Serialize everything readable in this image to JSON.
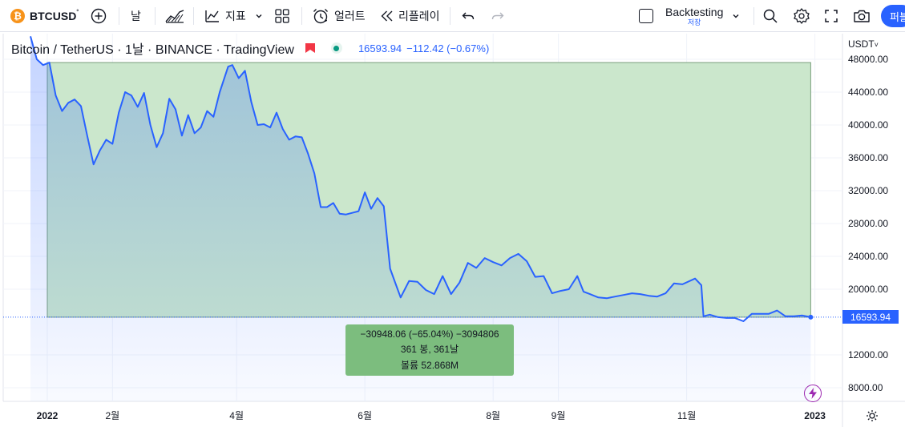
{
  "toolbar": {
    "symbol": "BTCUSD",
    "symbol_suffix": "°",
    "symbol_logo_glyph": "₿",
    "interval": "날",
    "indicators_label": "지표",
    "alerts_label": "얼러트",
    "replay_label": "리플레이",
    "backtesting_label": "Backtesting",
    "backtesting_sub": "저장",
    "publish_label": "퍼블"
  },
  "legend": {
    "title": "Bitcoin / TetherUS · 1날 · BINANCE · TradingView",
    "price": "16593.94",
    "change": "−112.42 (−0.67%)"
  },
  "price_axis": {
    "currency": "USDT",
    "labels": [
      "48000.00",
      "44000.00",
      "40000.00",
      "36000.00",
      "32000.00",
      "28000.00",
      "24000.00",
      "20000.00",
      "16593.94",
      "12000.00",
      "8000.00"
    ],
    "current_price": "16593.94"
  },
  "time_axis": {
    "labels": [
      "2022",
      "2월",
      "4월",
      "6월",
      "8월",
      "9월",
      "11월",
      "2023"
    ]
  },
  "measure_tooltip": {
    "line1": "−30948.06 (−65.04%) −3094806",
    "line2": "361 봉, 361날",
    "line3": "볼륨 52.868M"
  },
  "colors": {
    "line": "#2962ff",
    "measure_fill": "#c8e6c9",
    "tooltip_bg": "#7cbd7e",
    "accent": "#2962ff",
    "flag": "#f23645",
    "live": "#089981"
  },
  "chart_data": {
    "type": "line",
    "title": "Bitcoin / TetherUS · 1날 · BINANCE · TradingView",
    "ylim": [
      6500,
      51000
    ],
    "series": [
      {
        "name": "",
        "x": [
          "2021-12-24",
          "2021-12-27",
          "2021-12-30",
          "2022-01-02",
          "2022-01-05",
          "2022-01-08",
          "2022-01-11",
          "2022-01-14",
          "2022-01-17",
          "2022-01-20",
          "2022-01-23",
          "2022-01-26",
          "2022-01-29",
          "2022-02-01",
          "2022-02-04",
          "2022-02-07",
          "2022-02-10",
          "2022-02-13",
          "2022-02-16",
          "2022-02-19",
          "2022-02-22",
          "2022-02-25",
          "2022-02-28",
          "2022-03-03",
          "2022-03-06",
          "2022-03-09",
          "2022-03-12",
          "2022-03-15",
          "2022-03-18",
          "2022-03-21",
          "2022-03-24",
          "2022-03-28",
          "2022-03-30",
          "2022-04-02",
          "2022-04-05",
          "2022-04-08",
          "2022-04-11",
          "2022-04-14",
          "2022-04-17",
          "2022-04-20",
          "2022-04-23",
          "2022-04-26",
          "2022-04-29",
          "2022-05-02",
          "2022-05-05",
          "2022-05-08",
          "2022-05-11",
          "2022-05-14",
          "2022-05-17",
          "2022-05-20",
          "2022-05-23",
          "2022-05-26",
          "2022-05-29",
          "2022-06-01",
          "2022-06-04",
          "2022-06-07",
          "2022-06-10",
          "2022-06-13",
          "2022-06-16",
          "2022-06-18",
          "2022-06-22",
          "2022-06-26",
          "2022-06-30",
          "2022-07-04",
          "2022-07-08",
          "2022-07-12",
          "2022-07-16",
          "2022-07-20",
          "2022-07-24",
          "2022-07-28",
          "2022-08-01",
          "2022-08-05",
          "2022-08-09",
          "2022-08-13",
          "2022-08-17",
          "2022-08-21",
          "2022-08-25",
          "2022-08-29",
          "2022-09-02",
          "2022-09-06",
          "2022-09-10",
          "2022-09-13",
          "2022-09-16",
          "2022-09-20",
          "2022-09-24",
          "2022-09-28",
          "2022-10-02",
          "2022-10-06",
          "2022-10-10",
          "2022-10-14",
          "2022-10-18",
          "2022-10-22",
          "2022-10-26",
          "2022-10-30",
          "2022-11-05",
          "2022-11-08",
          "2022-11-09",
          "2022-11-12",
          "2022-11-16",
          "2022-11-20",
          "2022-11-24",
          "2022-11-28",
          "2022-12-02",
          "2022-12-06",
          "2022-12-10",
          "2022-12-14",
          "2022-12-18",
          "2022-12-22",
          "2022-12-26",
          "2022-12-30"
        ],
        "values": [
          50800,
          48000,
          47300,
          47600,
          43600,
          41700,
          42700,
          43100,
          42300,
          38700,
          35200,
          36900,
          38200,
          37700,
          41500,
          44000,
          43600,
          42200,
          43900,
          40000,
          37300,
          39000,
          43200,
          41900,
          38700,
          41200,
          39000,
          39700,
          41700,
          41000,
          44000,
          47100,
          47300,
          45700,
          46600,
          42800,
          40000,
          40100,
          39700,
          41500,
          39500,
          38200,
          38600,
          38500,
          36500,
          34100,
          30000,
          30000,
          30500,
          29200,
          29100,
          29300,
          29500,
          31800,
          29800,
          31100,
          30100,
          22500,
          20400,
          19000,
          21000,
          20900,
          19900,
          19400,
          21600,
          19400,
          20800,
          23200,
          22600,
          23800,
          23300,
          22900,
          23800,
          24300,
          23400,
          21500,
          21600,
          19500,
          19800,
          20000,
          21600,
          19700,
          19400,
          19000,
          18900,
          19100,
          19300,
          19500,
          19400,
          19200,
          19100,
          19500,
          20700,
          20600,
          21300,
          20500,
          16700,
          16900,
          16600,
          16500,
          16500,
          16100,
          17000,
          17000,
          17000,
          17400,
          16700,
          16700,
          16800,
          16594
        ]
      }
    ]
  }
}
